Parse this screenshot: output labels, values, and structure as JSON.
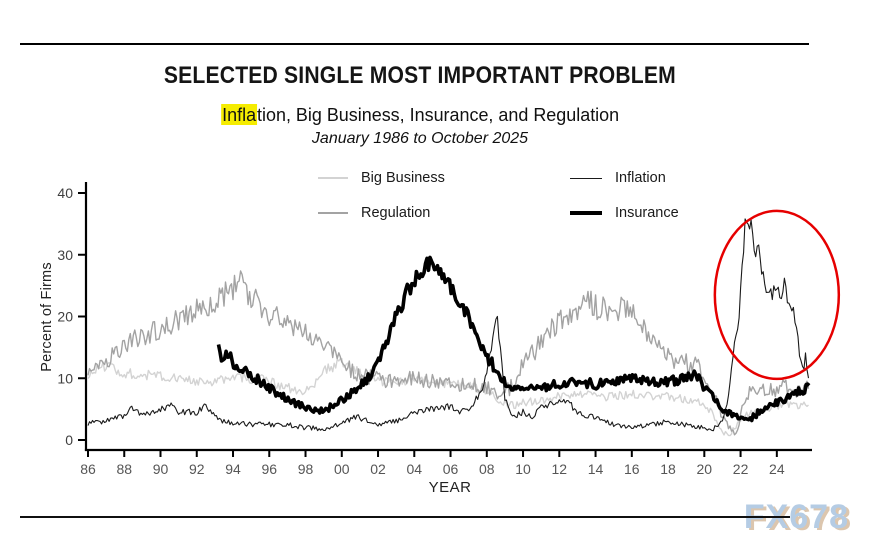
{
  "page": {
    "watermark": {
      "text": "FX678",
      "color": "#b5cce4",
      "shadow_color": "#dcc6ae"
    }
  },
  "chart_data": {
    "type": "line",
    "title": "SELECTED SINGLE MOST IMPORTANT PROBLEM",
    "subtitle_full": "Inflation, Big Business, Insurance, and Regulation",
    "subtitle_highlighted_part": "Infla",
    "subtitle_rest": "tion, Big Business, Insurance, and Regulation",
    "subtitle_highlight_color": "#f5ec00",
    "date_note": "January 1986 to October 2025",
    "xlabel": "YEAR",
    "ylabel": "Percent of Firms",
    "xlim_years": [
      1986,
      2025.83
    ],
    "ylim": [
      0,
      40
    ],
    "grid": "off",
    "legend_position": "top-center, 2x2",
    "y_ticks": [
      "0",
      "10",
      "20",
      "30",
      "40"
    ],
    "x_ticks": [
      {
        "label": "86",
        "year": 1986
      },
      {
        "label": "88",
        "year": 1988
      },
      {
        "label": "90",
        "year": 1990
      },
      {
        "label": "92",
        "year": 1992
      },
      {
        "label": "94",
        "year": 1994
      },
      {
        "label": "96",
        "year": 1996
      },
      {
        "label": "98",
        "year": 1998
      },
      {
        "label": "00",
        "year": 2000
      },
      {
        "label": "02",
        "year": 2002
      },
      {
        "label": "04",
        "year": 2004
      },
      {
        "label": "06",
        "year": 2006
      },
      {
        "label": "08",
        "year": 2008
      },
      {
        "label": "10",
        "year": 2010
      },
      {
        "label": "12",
        "year": 2012
      },
      {
        "label": "14",
        "year": 2014
      },
      {
        "label": "16",
        "year": 2016
      },
      {
        "label": "18",
        "year": 2018
      },
      {
        "label": "20",
        "year": 2020
      },
      {
        "label": "22",
        "year": 2022
      },
      {
        "label": "24",
        "year": 2024
      }
    ],
    "legend": [
      {
        "name": "Big Business",
        "color": "#d3d3d3",
        "line_weight": 2
      },
      {
        "name": "Inflation",
        "color": "#1a1a1a",
        "line_weight": 1.5
      },
      {
        "name": "Regulation",
        "color": "#a3a3a3",
        "line_weight": 2
      },
      {
        "name": "Insurance",
        "color": "#000000",
        "line_weight": 4
      }
    ],
    "annotation": {
      "shape": "ellipse",
      "color": "#e60000",
      "stroke_width": 2.5,
      "center_year": 2024.0,
      "center_value": 23.5,
      "radius_years": 3.42,
      "radius_values": 13.6,
      "meaning": "highlights 2021-2025 inflation spike"
    },
    "series": [
      {
        "name": "Big Business",
        "color": "#d3d3d3",
        "stroke_width": 1.4,
        "jitter": 0.6,
        "points": [
          [
            1986,
            10.5
          ],
          [
            1986.5,
            11.5
          ],
          [
            1987,
            12
          ],
          [
            1988,
            11
          ],
          [
            1989,
            10.5
          ],
          [
            1990,
            10.5
          ],
          [
            1991,
            10
          ],
          [
            1992,
            9.5
          ],
          [
            1993,
            9.5
          ],
          [
            1994,
            10.5
          ],
          [
            1995,
            10
          ],
          [
            1996,
            9.5
          ],
          [
            1997,
            8.5
          ],
          [
            1997.7,
            7.5
          ],
          [
            1998.5,
            9
          ],
          [
            1999,
            11
          ],
          [
            1999.5,
            12
          ],
          [
            2000,
            12.5
          ],
          [
            2000.7,
            11.5
          ],
          [
            2001.5,
            10
          ],
          [
            2002,
            9.5
          ],
          [
            2003,
            9.5
          ],
          [
            2004,
            10
          ],
          [
            2005,
            9.5
          ],
          [
            2006,
            9
          ],
          [
            2007,
            9
          ],
          [
            2008,
            8
          ],
          [
            2008.8,
            6
          ],
          [
            2009.5,
            5.5
          ],
          [
            2010,
            6
          ],
          [
            2011,
            6.5
          ],
          [
            2012,
            7
          ],
          [
            2013,
            7.5
          ],
          [
            2014,
            7
          ],
          [
            2015,
            7
          ],
          [
            2016,
            7.5
          ],
          [
            2017,
            7
          ],
          [
            2018,
            7
          ],
          [
            2019,
            6.5
          ],
          [
            2020,
            6
          ],
          [
            2020.6,
            3.5
          ],
          [
            2021,
            1.2
          ],
          [
            2021.4,
            0.8
          ],
          [
            2022,
            3.5
          ],
          [
            2022.6,
            4.5
          ],
          [
            2023,
            4.5
          ],
          [
            2023.5,
            5
          ],
          [
            2024,
            5.5
          ],
          [
            2024.6,
            6
          ],
          [
            2025,
            5.5
          ],
          [
            2025.75,
            6
          ]
        ]
      },
      {
        "name": "Regulation",
        "color": "#a3a3a3",
        "stroke_width": 1.4,
        "jitter": 0.9,
        "points": [
          [
            1986,
            10
          ],
          [
            1987,
            13
          ],
          [
            1988,
            15
          ],
          [
            1989,
            17
          ],
          [
            1990,
            18
          ],
          [
            1991,
            19.5
          ],
          [
            1992,
            21
          ],
          [
            1993,
            22.5
          ],
          [
            1993.8,
            24
          ],
          [
            1994.4,
            26
          ],
          [
            1994.9,
            23.5
          ],
          [
            1995.5,
            22
          ],
          [
            1996.2,
            20
          ],
          [
            1997,
            18.5
          ],
          [
            1997.7,
            17.5
          ],
          [
            1998.5,
            16
          ],
          [
            1999.3,
            14.5
          ],
          [
            2000,
            13.5
          ],
          [
            2000.5,
            11.5
          ],
          [
            2001,
            10.5
          ],
          [
            2002,
            10
          ],
          [
            2003,
            9.5
          ],
          [
            2004,
            10
          ],
          [
            2005,
            9.5
          ],
          [
            2006,
            9
          ],
          [
            2007,
            9
          ],
          [
            2008,
            8.5
          ],
          [
            2008.8,
            7
          ],
          [
            2009.3,
            8.5
          ],
          [
            2010,
            12
          ],
          [
            2010.8,
            15
          ],
          [
            2011.3,
            17
          ],
          [
            2012,
            19
          ],
          [
            2013,
            21
          ],
          [
            2013.6,
            22.5
          ],
          [
            2014,
            21.5
          ],
          [
            2015,
            21
          ],
          [
            2015.8,
            21.5
          ],
          [
            2016.5,
            19
          ],
          [
            2017.2,
            16.5
          ],
          [
            2018,
            13.5
          ],
          [
            2018.7,
            12.5
          ],
          [
            2019.5,
            12.5
          ],
          [
            2020.2,
            10
          ],
          [
            2020.7,
            6
          ],
          [
            2021.2,
            2.5
          ],
          [
            2021.7,
            0.8
          ],
          [
            2022,
            4
          ],
          [
            2022.4,
            7.5
          ],
          [
            2023,
            8
          ],
          [
            2023.5,
            8.5
          ],
          [
            2024,
            8
          ],
          [
            2024.5,
            9
          ],
          [
            2025,
            7.5
          ],
          [
            2025.75,
            8.5
          ]
        ]
      },
      {
        "name": "Inflation",
        "color": "#1a1a1a",
        "stroke_width": 1.1,
        "jitter": 0.5,
        "points": [
          [
            1986,
            2.5
          ],
          [
            1986.5,
            3
          ],
          [
            1987,
            3
          ],
          [
            1988,
            4
          ],
          [
            1988.4,
            5
          ],
          [
            1989,
            4
          ],
          [
            1990,
            5
          ],
          [
            1990.6,
            5.5
          ],
          [
            1991,
            4.5
          ],
          [
            1992,
            4.5
          ],
          [
            1992.5,
            5.5
          ],
          [
            1993,
            4
          ],
          [
            1993.5,
            3
          ],
          [
            1994,
            2.8
          ],
          [
            1995,
            2.5
          ],
          [
            1996,
            2.5
          ],
          [
            1997,
            2.5
          ],
          [
            1998,
            2
          ],
          [
            1999,
            1.8
          ],
          [
            2000,
            2.8
          ],
          [
            2000.8,
            3.8
          ],
          [
            2001.5,
            3
          ],
          [
            2002,
            2.5
          ],
          [
            2003,
            3
          ],
          [
            2004,
            4.5
          ],
          [
            2005,
            5
          ],
          [
            2006,
            5.5
          ],
          [
            2006.5,
            4.5
          ],
          [
            2007,
            5
          ],
          [
            2007.8,
            8
          ],
          [
            2008.2,
            14
          ],
          [
            2008.55,
            20
          ],
          [
            2008.8,
            13
          ],
          [
            2009,
            7
          ],
          [
            2009.4,
            3.5
          ],
          [
            2010,
            4.5
          ],
          [
            2010.5,
            3.5
          ],
          [
            2011,
            5.5
          ],
          [
            2012,
            6
          ],
          [
            2012.4,
            6.5
          ],
          [
            2013,
            4.5
          ],
          [
            2014,
            3.5
          ],
          [
            2015,
            2.5
          ],
          [
            2016,
            2
          ],
          [
            2017,
            2.5
          ],
          [
            2018,
            3
          ],
          [
            2019,
            2.5
          ],
          [
            2020,
            2
          ],
          [
            2020.4,
            1.5
          ],
          [
            2021,
            3
          ],
          [
            2021.3,
            6
          ],
          [
            2021.6,
            14
          ],
          [
            2021.9,
            20
          ],
          [
            2022.1,
            28
          ],
          [
            2022.3,
            37
          ],
          [
            2022.45,
            33
          ],
          [
            2022.6,
            35
          ],
          [
            2022.8,
            30
          ],
          [
            2023,
            31
          ],
          [
            2023.2,
            27
          ],
          [
            2023.4,
            25
          ],
          [
            2023.7,
            23.5
          ],
          [
            2024,
            25
          ],
          [
            2024.2,
            23
          ],
          [
            2024.4,
            26
          ],
          [
            2024.6,
            22
          ],
          [
            2025,
            20
          ],
          [
            2025.2,
            15
          ],
          [
            2025.4,
            11
          ],
          [
            2025.6,
            13.5
          ],
          [
            2025.75,
            9.5
          ]
        ]
      },
      {
        "name": "Insurance",
        "color": "#000000",
        "stroke_width": 3.6,
        "jitter": 0.55,
        "points": [
          [
            1993.2,
            16
          ],
          [
            1993.4,
            13
          ],
          [
            1993.7,
            14
          ],
          [
            1994,
            12.5
          ],
          [
            1994.5,
            11.5
          ],
          [
            1995,
            10.5
          ],
          [
            1995.5,
            9.5
          ],
          [
            1996,
            8.5
          ],
          [
            1997,
            6.5
          ],
          [
            1998,
            5.2
          ],
          [
            1998.7,
            4.8
          ],
          [
            1999.3,
            5.2
          ],
          [
            2000,
            6.5
          ],
          [
            2000.7,
            8
          ],
          [
            2001.3,
            9.5
          ],
          [
            2002,
            12.5
          ],
          [
            2002.5,
            16
          ],
          [
            2003,
            20
          ],
          [
            2003.5,
            23.5
          ],
          [
            2004,
            26
          ],
          [
            2004.5,
            27.5
          ],
          [
            2004.8,
            28.5
          ],
          [
            2005.2,
            28
          ],
          [
            2005.6,
            27
          ],
          [
            2006,
            24.5
          ],
          [
            2006.5,
            22.5
          ],
          [
            2007,
            19.5
          ],
          [
            2007.5,
            16.5
          ],
          [
            2008,
            13.5
          ],
          [
            2008.5,
            11.5
          ],
          [
            2009,
            9.5
          ],
          [
            2009.5,
            8.5
          ],
          [
            2010,
            8
          ],
          [
            2011,
            8.5
          ],
          [
            2012,
            9
          ],
          [
            2013,
            9.5
          ],
          [
            2014,
            9
          ],
          [
            2015,
            9.5
          ],
          [
            2016,
            10
          ],
          [
            2017,
            9.5
          ],
          [
            2018,
            9.5
          ],
          [
            2019,
            10
          ],
          [
            2019.5,
            10.5
          ],
          [
            2020.3,
            7.5
          ],
          [
            2021,
            5
          ],
          [
            2021.5,
            4
          ],
          [
            2022,
            3.5
          ],
          [
            2022.5,
            3.2
          ],
          [
            2023,
            4.5
          ],
          [
            2023.5,
            5.5
          ],
          [
            2024,
            6
          ],
          [
            2024.5,
            6.5
          ],
          [
            2025,
            7.5
          ],
          [
            2025.75,
            8.5
          ]
        ]
      }
    ]
  }
}
